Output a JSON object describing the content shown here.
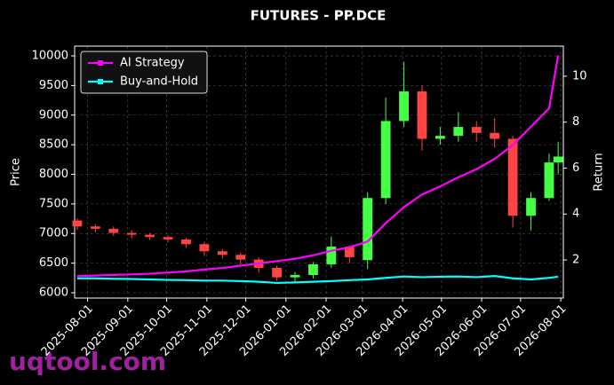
{
  "chart_data": {
    "type": "candlestick",
    "title": "FUTURES - PP.DCE",
    "y_label": "Price",
    "y2_label": "Return",
    "x": [
      "2025-07-24",
      "2025-08-07",
      "2025-08-21",
      "2025-09-04",
      "2025-09-18",
      "2025-10-02",
      "2025-10-16",
      "2025-10-30",
      "2025-11-13",
      "2025-11-27",
      "2025-12-11",
      "2025-12-25",
      "2026-01-08",
      "2026-01-22",
      "2026-02-05",
      "2026-02-19",
      "2026-03-05",
      "2026-03-19",
      "2026-04-02",
      "2026-04-16",
      "2026-04-30",
      "2026-05-14",
      "2026-05-28",
      "2026-06-11",
      "2026-06-25",
      "2026-07-09",
      "2026-07-23",
      "2026-07-30"
    ],
    "open": [
      7220,
      7120,
      7080,
      7010,
      6980,
      6940,
      6900,
      6820,
      6700,
      6640,
      6560,
      6420,
      6260,
      6300,
      6480,
      6780,
      6550,
      7600,
      8900,
      9400,
      8600,
      8650,
      8800,
      8700,
      8600,
      7300,
      7600,
      8200
    ],
    "high": [
      7260,
      7160,
      7120,
      7060,
      7010,
      6970,
      6930,
      6860,
      6740,
      6680,
      6600,
      6460,
      6350,
      6520,
      6950,
      6800,
      7700,
      9300,
      9900,
      9500,
      8800,
      9050,
      8900,
      8950,
      8650,
      7700,
      8350,
      8550
    ],
    "low": [
      7060,
      7020,
      6960,
      6920,
      6890,
      6850,
      6760,
      6620,
      6580,
      6480,
      6340,
      6200,
      6160,
      6240,
      6420,
      6500,
      6400,
      7500,
      8800,
      8400,
      8500,
      8550,
      8550,
      8450,
      7100,
      7050,
      7550,
      8000
    ],
    "close": [
      7120,
      7080,
      7010,
      6980,
      6940,
      6900,
      6820,
      6700,
      6640,
      6560,
      6420,
      6260,
      6300,
      6480,
      6780,
      6600,
      7600,
      8900,
      9400,
      8600,
      8650,
      8800,
      8700,
      8600,
      7300,
      7600,
      8200,
      8300
    ],
    "up_color": "#44ff44",
    "down_color": "#ff4444",
    "series": [
      {
        "name": "AI Strategy",
        "color": "#ff00ff",
        "axis": "y2",
        "values": [
          1.3,
          1.32,
          1.35,
          1.37,
          1.4,
          1.45,
          1.5,
          1.58,
          1.65,
          1.75,
          1.85,
          1.95,
          2.05,
          2.2,
          2.4,
          2.55,
          2.8,
          3.6,
          4.3,
          4.85,
          5.2,
          5.6,
          5.95,
          6.4,
          7.0,
          7.8,
          8.6,
          10.9
        ]
      },
      {
        "name": "Buy-and-Hold",
        "color": "#00ffff",
        "axis": "y2",
        "values": [
          1.2,
          1.2,
          1.18,
          1.17,
          1.15,
          1.13,
          1.12,
          1.1,
          1.1,
          1.08,
          1.05,
          1.0,
          1.02,
          1.05,
          1.08,
          1.12,
          1.15,
          1.22,
          1.28,
          1.25,
          1.27,
          1.28,
          1.25,
          1.3,
          1.2,
          1.15,
          1.22,
          1.27
        ]
      }
    ],
    "xlim": [
      "2025-07-22",
      "2026-08-03"
    ],
    "xticks": [
      "2025-08-01",
      "2025-09-01",
      "2025-10-01",
      "2025-11-01",
      "2025-12-01",
      "2026-01-01",
      "2026-02-01",
      "2026-03-01",
      "2026-04-01",
      "2026-05-01",
      "2026-06-01",
      "2026-07-01",
      "2026-08-01"
    ],
    "ylim": [
      5910,
      10165
    ],
    "yticks": [
      6000,
      6500,
      7000,
      7500,
      8000,
      8500,
      9000,
      9500,
      10000
    ],
    "y2lim": [
      0.34,
      11.31
    ],
    "y2ticks": [
      2,
      4,
      6,
      8,
      10
    ],
    "grid": true,
    "legend": "upper left"
  },
  "watermark": "uqtool.com"
}
